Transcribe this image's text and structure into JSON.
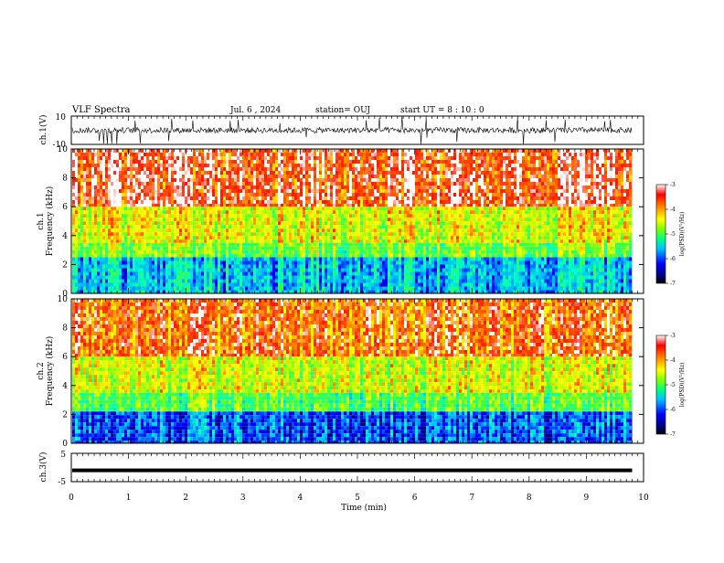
{
  "header": {
    "title": "VLF Spectra",
    "date": "Jul. 6 , 2024",
    "station": "station= OUJ",
    "start_ut": "start UT = 8 : 10 : 0"
  },
  "colors": {
    "spectrogram_scale": [
      "#000080",
      "#0000ff",
      "#00a0ff",
      "#00ffff",
      "#00ff80",
      "#80ff00",
      "#ffff00",
      "#ffa000",
      "#ff0000",
      "#ffffff"
    ]
  },
  "chart_data": [
    {
      "id": "ch1-waveform",
      "type": "line",
      "ylabel": "ch.1(V)",
      "ylim": [
        -10,
        10
      ],
      "yticklabels": [
        "10",
        "-10"
      ],
      "xlim": [
        0,
        10
      ],
      "description_values": {
        "baseline": 0,
        "typical_amplitude": 2,
        "peak_amplitude": 10,
        "x_end": 9.8
      }
    },
    {
      "id": "ch1-spectrogram",
      "type": "heatmap",
      "ylabel": "ch.1 Frequency (kHz)",
      "ylim": [
        0,
        10
      ],
      "yticks": [
        0,
        2,
        4,
        6,
        8,
        10
      ],
      "xlim": [
        0,
        10
      ],
      "x_end": 9.8,
      "colorbar": {
        "label": "log(PSD)(V²/Hz)",
        "range": [
          -7,
          -3
        ],
        "ticks": [
          -3,
          -4,
          -5,
          -6,
          -7
        ]
      },
      "bands_khz": [
        {
          "range": [
            0,
            2.5
          ],
          "log_psd": -5.8
        },
        {
          "range": [
            2.5,
            3.5
          ],
          "log_psd": -4.8
        },
        {
          "range": [
            3.5,
            6
          ],
          "log_psd": -4.3
        },
        {
          "range": [
            6,
            10
          ],
          "log_psd": -3.3
        }
      ]
    },
    {
      "id": "ch2-spectrogram",
      "type": "heatmap",
      "ylabel": "ch.2 Frequency (kHz)",
      "ylim": [
        0,
        10
      ],
      "yticks": [
        0,
        2,
        4,
        6,
        8,
        10
      ],
      "xlim": [
        0,
        10
      ],
      "x_end": 9.8,
      "colorbar": {
        "label": "log(PSD)(V²/Hz)",
        "range": [
          -7,
          -3
        ],
        "ticks": [
          -3,
          -4,
          -5,
          -6,
          -7
        ]
      },
      "bands_khz": [
        {
          "range": [
            0,
            2.2
          ],
          "log_psd": -6.3
        },
        {
          "range": [
            2.2,
            3.5
          ],
          "log_psd": -5.0
        },
        {
          "range": [
            3.5,
            6
          ],
          "log_psd": -4.4
        },
        {
          "range": [
            6,
            10
          ],
          "log_psd": -3.6
        }
      ]
    },
    {
      "id": "ch3-waveform",
      "type": "line",
      "ylabel": "ch.3(V)",
      "ylim": [
        -5,
        5
      ],
      "yticklabels": [
        "5",
        "-5"
      ],
      "xlim": [
        0,
        10
      ],
      "description_values": {
        "constant_value": -1,
        "x_end": 9.8
      }
    }
  ],
  "x_axis": {
    "label": "Time (min)",
    "ticks": [
      "0",
      "1",
      "2",
      "3",
      "4",
      "5",
      "6",
      "7",
      "8",
      "9",
      "10"
    ]
  }
}
